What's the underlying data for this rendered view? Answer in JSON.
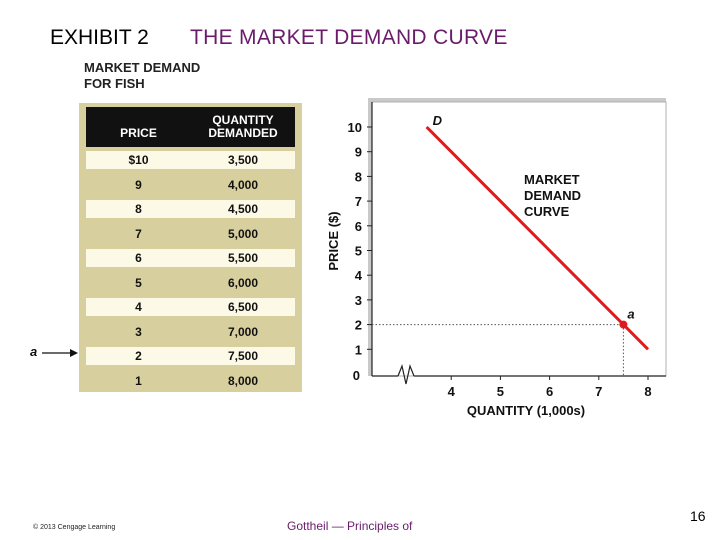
{
  "header": {
    "exhibit": "EXHIBIT 2",
    "title": "THE MARKET DEMAND CURVE"
  },
  "table": {
    "title_line1": "MARKET DEMAND",
    "title_line2": "FOR FISH",
    "col_price": "PRICE",
    "col_qty_line1": "QUANTITY",
    "col_qty_line2": "DEMANDED",
    "rows": [
      {
        "price": "$10",
        "qty": "3,500"
      },
      {
        "price": "9",
        "qty": "4,000"
      },
      {
        "price": "8",
        "qty": "4,500"
      },
      {
        "price": "7",
        "qty": "5,000"
      },
      {
        "price": "6",
        "qty": "5,500"
      },
      {
        "price": "5",
        "qty": "6,000"
      },
      {
        "price": "4",
        "qty": "6,500"
      },
      {
        "price": "3",
        "qty": "7,000"
      },
      {
        "price": "2",
        "qty": "7,500"
      },
      {
        "price": "1",
        "qty": "8,000"
      }
    ],
    "pointer_label": "a",
    "pointer_row_index": 8
  },
  "chart_data": {
    "type": "line",
    "xlabel": "QUANTITY (1,000s)",
    "ylabel": "PRICE ($)",
    "x_ticks": [
      "4",
      "5",
      "6",
      "7",
      "8"
    ],
    "y_ticks": [
      "1",
      "2",
      "3",
      "4",
      "5",
      "6",
      "7",
      "8",
      "9",
      "10"
    ],
    "origin_label": "0",
    "axis_break": true,
    "xlim": [
      3,
      8
    ],
    "ylim": [
      0,
      10
    ],
    "series": [
      {
        "name": "D",
        "color": "#e01b1b",
        "x": [
          3.5,
          4,
          4.5,
          5,
          5.5,
          6,
          6.5,
          7,
          7.5,
          8
        ],
        "y": [
          10,
          9,
          8,
          7,
          6,
          5,
          4,
          3,
          2,
          1
        ]
      }
    ],
    "curve_label": "D",
    "annotation": {
      "line1": "MARKET",
      "line2": "DEMAND",
      "line3": "CURVE"
    },
    "highlight_point": {
      "label": "a",
      "x": 7.5,
      "y": 2
    }
  },
  "footer": {
    "copyright": "© 2013 Cengage Learning",
    "source": "Gottheil — Principles of",
    "page": "16"
  }
}
